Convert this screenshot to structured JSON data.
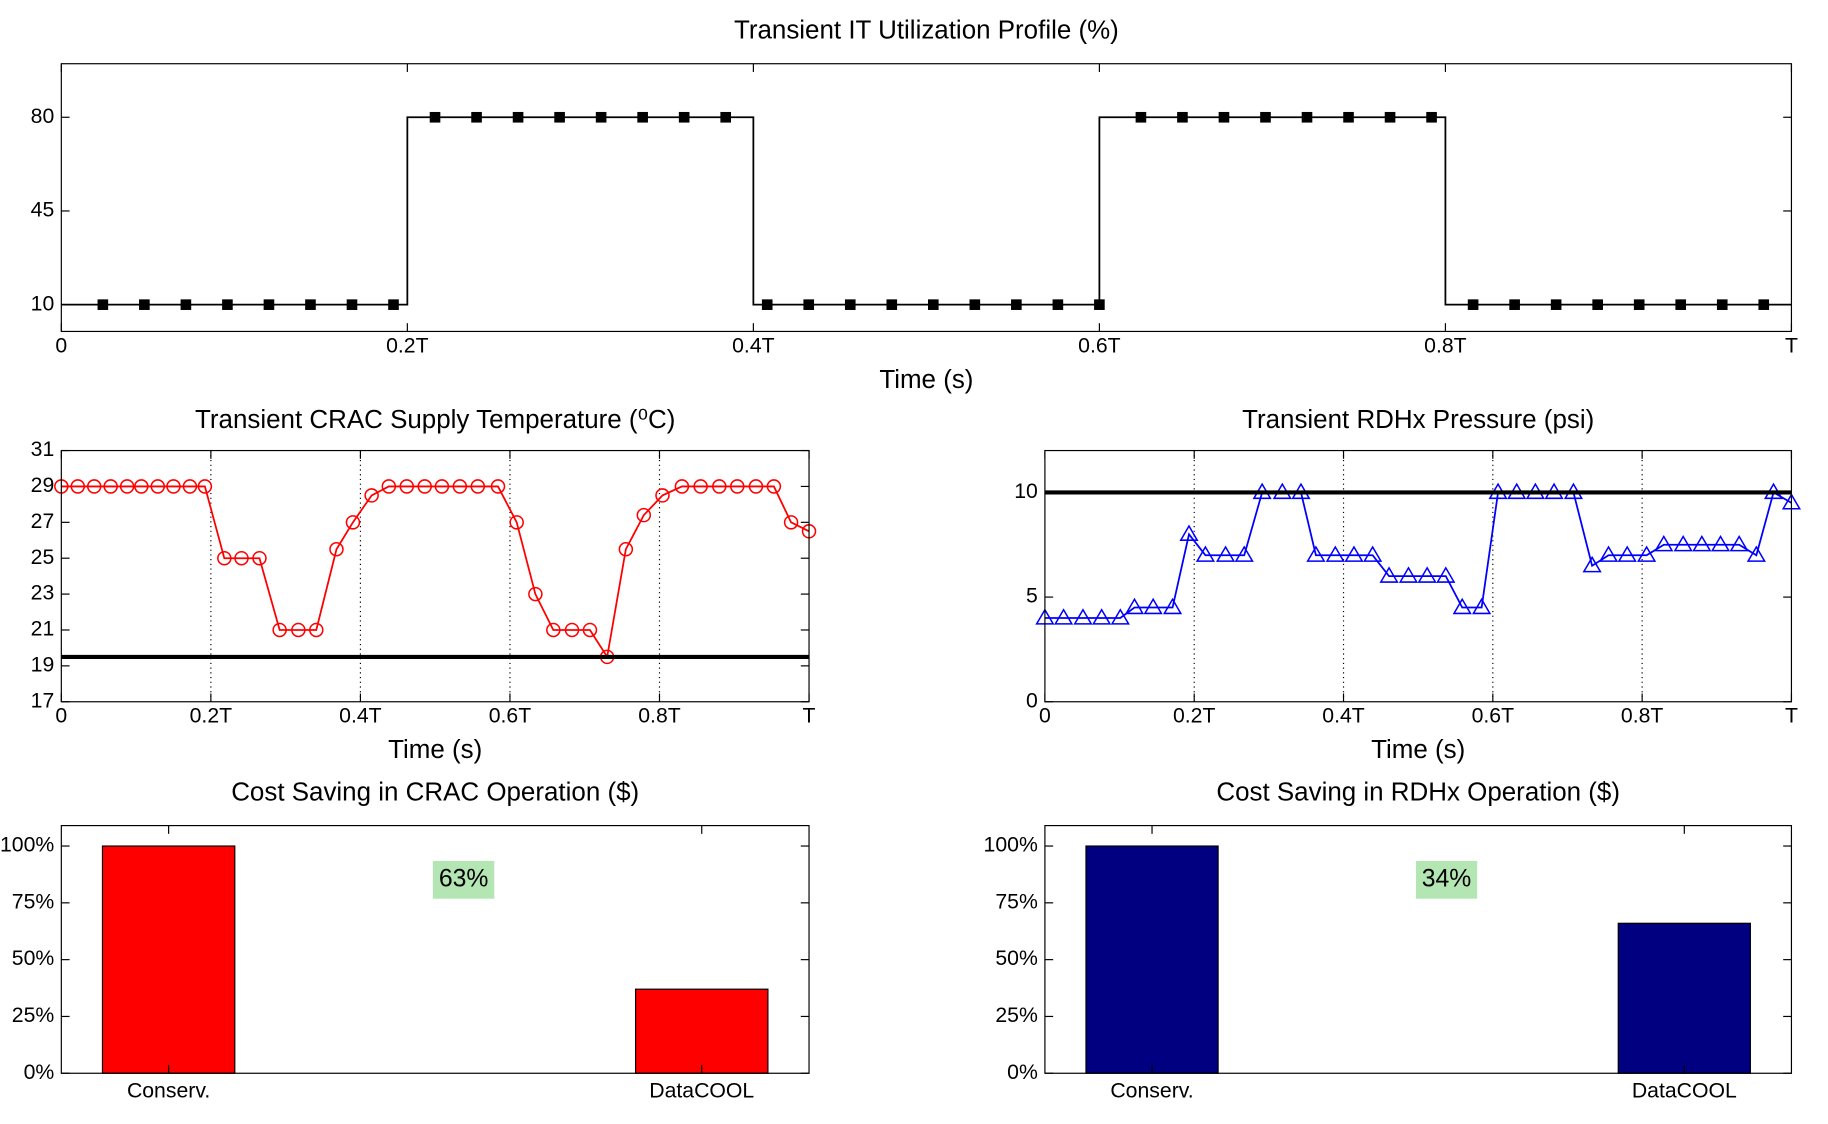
{
  "chart_data": [
    {
      "type": "line",
      "title": "Transient IT Utilization Profile (%)",
      "xlabel": "Time (s)",
      "xlim": [
        0,
        1
      ],
      "xticks": [
        0,
        {
          "value": 0.2,
          "label": "0.2T"
        },
        {
          "value": 0.4,
          "label": "0.4T"
        },
        {
          "value": 0.6,
          "label": "0.6T"
        },
        {
          "value": 0.8,
          "label": "0.8T"
        },
        {
          "value": 1,
          "label": "T"
        }
      ],
      "ylim": [
        0,
        100
      ],
      "yticks": [
        10,
        45,
        80
      ],
      "xgrid": false,
      "series": [
        {
          "color": "#000000",
          "line_width": 1.5,
          "marker": "none",
          "x": [
            0,
            0.2,
            0.2,
            0.4,
            0.4,
            0.6,
            0.6,
            0.8,
            0.8,
            1
          ],
          "values": [
            10,
            10,
            80,
            80,
            10,
            10,
            80,
            80,
            10,
            10
          ]
        },
        {
          "color": "#000000",
          "line": false,
          "marker": "square",
          "x": [
            0.024,
            0.048,
            0.072,
            0.096,
            0.12,
            0.144,
            0.168,
            0.192,
            0.216,
            0.24,
            0.264,
            0.288,
            0.312,
            0.336,
            0.36,
            0.384,
            0.408,
            0.432,
            0.456,
            0.48,
            0.504,
            0.528,
            0.552,
            0.576,
            0.6,
            0.624,
            0.648,
            0.672,
            0.696,
            0.72,
            0.744,
            0.768,
            0.792,
            0.816,
            0.84,
            0.864,
            0.888,
            0.912,
            0.936,
            0.96,
            0.984
          ],
          "values": [
            10,
            10,
            10,
            10,
            10,
            10,
            10,
            10,
            80,
            80,
            80,
            80,
            80,
            80,
            80,
            80,
            10,
            10,
            10,
            10,
            10,
            10,
            10,
            10,
            10,
            80,
            80,
            80,
            80,
            80,
            80,
            80,
            80,
            10,
            10,
            10,
            10,
            10,
            10,
            10,
            10
          ]
        }
      ]
    },
    {
      "type": "line",
      "title": "Transient CRAC Supply Temperature (⁰C)",
      "xlabel": "Time (s)",
      "xlim": [
        0,
        1
      ],
      "xticks": [
        0,
        {
          "value": 0.2,
          "label": "0.2T"
        },
        {
          "value": 0.4,
          "label": "0.4T"
        },
        {
          "value": 0.6,
          "label": "0.6T"
        },
        {
          "value": 0.8,
          "label": "0.8T"
        },
        {
          "value": 1,
          "label": "T"
        }
      ],
      "ylim": [
        17,
        31
      ],
      "yticks": [
        17,
        19,
        21,
        23,
        25,
        27,
        29,
        31
      ],
      "xgrid": true,
      "series": [
        {
          "color": "#ff0000",
          "line_width": 1.5,
          "marker": "circle",
          "x": [
            0,
            0.022,
            0.044,
            0.066,
            0.088,
            0.107,
            0.129,
            0.15,
            0.172,
            0.192,
            0.218,
            0.241,
            0.265,
            0.292,
            0.317,
            0.341,
            0.368,
            0.39,
            0.415,
            0.438,
            0.462,
            0.486,
            0.509,
            0.533,
            0.557,
            0.584,
            0.609,
            0.634,
            0.658,
            0.683,
            0.707,
            0.73,
            0.755,
            0.779,
            0.804,
            0.83,
            0.855,
            0.88,
            0.904,
            0.929,
            0.953,
            0.976,
            1
          ],
          "values": [
            29,
            29,
            29,
            29,
            29,
            29,
            29,
            29,
            29,
            29,
            25,
            25,
            25,
            21,
            21,
            21,
            25.5,
            27,
            28.5,
            29,
            29,
            29,
            29,
            29,
            29,
            29,
            27,
            23,
            21,
            21,
            21,
            19.5,
            25.5,
            27.4,
            28.5,
            29,
            29,
            29,
            29,
            29,
            29,
            27,
            26.5
          ]
        },
        {
          "color": "#000000",
          "line_width": 3.5,
          "marker": "none",
          "x": [
            0,
            1
          ],
          "values": [
            19.5,
            19.5
          ]
        }
      ]
    },
    {
      "type": "line",
      "title": "Transient RDHx Pressure (psi)",
      "xlabel": "Time (s)",
      "xlim": [
        0,
        1
      ],
      "xticks": [
        0,
        {
          "value": 0.2,
          "label": "0.2T"
        },
        {
          "value": 0.4,
          "label": "0.4T"
        },
        {
          "value": 0.6,
          "label": "0.6T"
        },
        {
          "value": 0.8,
          "label": "0.8T"
        },
        {
          "value": 1,
          "label": "T"
        }
      ],
      "ylim": [
        0,
        12
      ],
      "yticks": [
        0,
        5,
        10
      ],
      "xgrid": true,
      "series": [
        {
          "color": "#0000ff",
          "line_width": 1.5,
          "marker": "triangle",
          "x": [
            0,
            0.025,
            0.051,
            0.076,
            0.101,
            0.12,
            0.145,
            0.171,
            0.193,
            0.215,
            0.242,
            0.267,
            0.291,
            0.318,
            0.343,
            0.363,
            0.389,
            0.414,
            0.439,
            0.461,
            0.487,
            0.512,
            0.537,
            0.559,
            0.585,
            0.607,
            0.632,
            0.657,
            0.682,
            0.708,
            0.733,
            0.755,
            0.78,
            0.806,
            0.829,
            0.855,
            0.88,
            0.905,
            0.93,
            0.953,
            0.976,
            1
          ],
          "values": [
            4,
            4,
            4,
            4,
            4,
            4.5,
            4.5,
            4.5,
            8,
            7,
            7,
            7,
            10,
            10,
            10,
            7,
            7,
            7,
            7,
            6,
            6,
            6,
            6,
            4.5,
            4.5,
            10,
            10,
            10,
            10,
            10,
            6.5,
            7,
            7,
            7,
            7.5,
            7.5,
            7.5,
            7.5,
            7.5,
            7,
            10,
            9.5
          ]
        },
        {
          "color": "#000000",
          "line_width": 3.5,
          "marker": "none",
          "x": [
            0,
            1
          ],
          "values": [
            10,
            10
          ]
        }
      ]
    },
    {
      "type": "bar",
      "title": "Cost Saving in CRAC Operation ($)",
      "categories": [
        "Conserv.",
        "DataCOOL"
      ],
      "values": [
        100,
        37
      ],
      "color": "#ff0000",
      "ylim": [
        0,
        109
      ],
      "yticks": [
        {
          "value": 0,
          "label": "0%"
        },
        {
          "value": 25,
          "label": "25%"
        },
        {
          "value": 50,
          "label": "50%"
        },
        {
          "value": 75,
          "label": "75%"
        },
        {
          "value": 100,
          "label": "100%"
        }
      ],
      "annotation": "63%"
    },
    {
      "type": "bar",
      "title": "Cost Saving in RDHx Operation ($)",
      "categories": [
        "Conserv.",
        "DataCOOL"
      ],
      "values": [
        100,
        66
      ],
      "color": "#000080",
      "ylim": [
        0,
        109
      ],
      "yticks": [
        {
          "value": 0,
          "label": "0%"
        },
        {
          "value": 25,
          "label": "25%"
        },
        {
          "value": 50,
          "label": "50%"
        },
        {
          "value": 75,
          "label": "75%"
        },
        {
          "value": 100,
          "label": "100%"
        }
      ],
      "annotation": "34%"
    }
  ]
}
